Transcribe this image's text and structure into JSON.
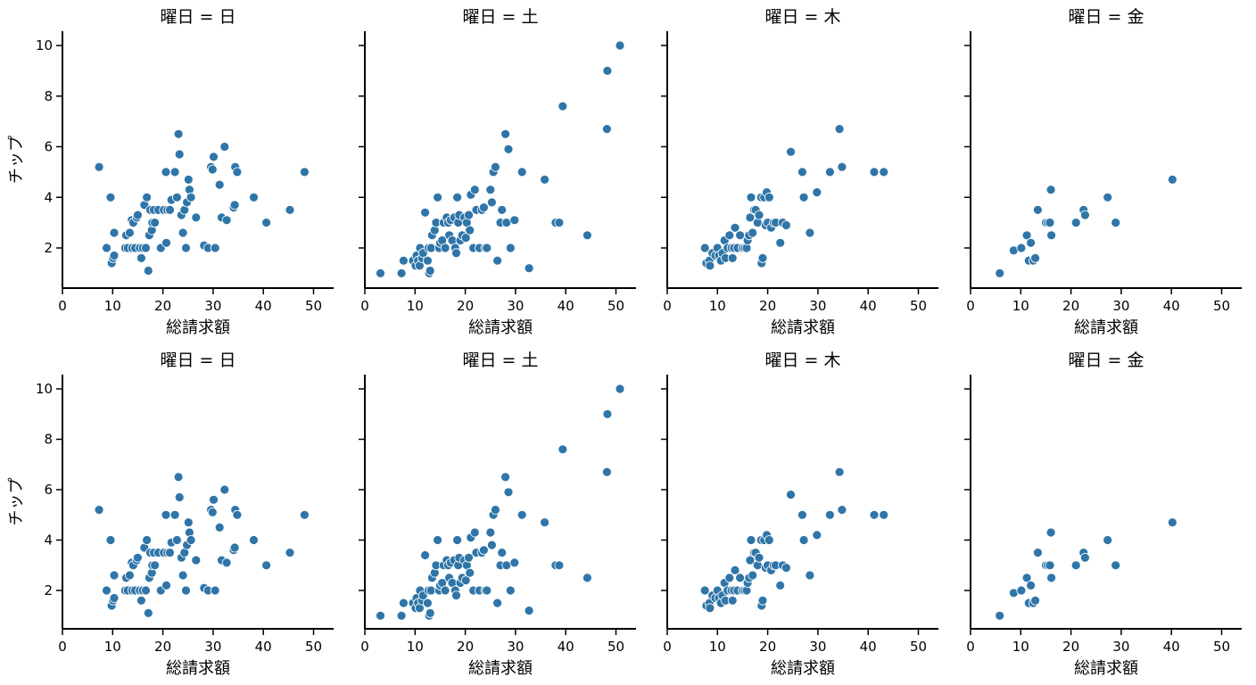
{
  "chart_data": {
    "type": "scatter",
    "title_prefix": "曜日 = ",
    "xlabel": "総請求額",
    "ylabel": "チップ",
    "xlim": [
      0,
      54
    ],
    "ylim": [
      0.5,
      10.5
    ],
    "xticks": [
      0,
      10,
      20,
      30,
      40,
      50
    ],
    "yticks": [
      2,
      4,
      6,
      8,
      10
    ],
    "marker_color": "#2f75a8",
    "rows": 2,
    "panels": [
      {
        "day": "日",
        "points": [
          [
            7.3,
            5.2
          ],
          [
            8.8,
            2.0
          ],
          [
            9.6,
            4.0
          ],
          [
            9.8,
            1.4
          ],
          [
            10.1,
            1.6
          ],
          [
            10.3,
            1.7
          ],
          [
            10.3,
            2.6
          ],
          [
            12.5,
            2.0
          ],
          [
            12.7,
            2.5
          ],
          [
            13.0,
            2.0
          ],
          [
            13.4,
            2.6
          ],
          [
            13.8,
            3.1
          ],
          [
            13.9,
            2.0
          ],
          [
            14.1,
            3.0
          ],
          [
            14.5,
            2.0
          ],
          [
            14.8,
            3.2
          ],
          [
            15.0,
            3.3
          ],
          [
            15.4,
            2.0
          ],
          [
            15.7,
            1.6
          ],
          [
            16.0,
            2.0
          ],
          [
            16.3,
            3.7
          ],
          [
            16.6,
            2.0
          ],
          [
            16.8,
            4.0
          ],
          [
            17.1,
            1.1
          ],
          [
            17.3,
            2.5
          ],
          [
            17.5,
            3.5
          ],
          [
            17.8,
            2.7
          ],
          [
            17.9,
            3.0
          ],
          [
            18.2,
            3.5
          ],
          [
            18.4,
            3.0
          ],
          [
            19.1,
            3.5
          ],
          [
            19.6,
            2.0
          ],
          [
            20.2,
            3.5
          ],
          [
            20.6,
            5.0
          ],
          [
            20.9,
            3.5
          ],
          [
            20.7,
            2.2
          ],
          [
            21.4,
            3.5
          ],
          [
            21.7,
            3.9
          ],
          [
            22.4,
            5.0
          ],
          [
            22.8,
            4.0
          ],
          [
            23.1,
            6.5
          ],
          [
            23.3,
            5.7
          ],
          [
            23.7,
            3.3
          ],
          [
            24.0,
            2.6
          ],
          [
            24.3,
            3.5
          ],
          [
            24.6,
            2.0
          ],
          [
            24.8,
            3.8
          ],
          [
            25.1,
            4.7
          ],
          [
            25.3,
            4.3
          ],
          [
            25.6,
            4.0
          ],
          [
            26.6,
            3.2
          ],
          [
            28.2,
            2.1
          ],
          [
            29.0,
            2.0
          ],
          [
            29.6,
            5.2
          ],
          [
            29.9,
            5.1
          ],
          [
            30.1,
            5.6
          ],
          [
            30.4,
            2.0
          ],
          [
            31.3,
            4.5
          ],
          [
            31.7,
            3.2
          ],
          [
            32.3,
            6.0
          ],
          [
            32.7,
            3.1
          ],
          [
            34.1,
            3.6
          ],
          [
            34.3,
            3.7
          ],
          [
            34.4,
            5.2
          ],
          [
            34.8,
            5.0
          ],
          [
            38.1,
            4.0
          ],
          [
            40.6,
            3.0
          ],
          [
            45.3,
            3.5
          ],
          [
            48.2,
            5.0
          ]
        ]
      },
      {
        "day": "土",
        "points": [
          [
            3.1,
            1.0
          ],
          [
            7.3,
            1.0
          ],
          [
            7.7,
            1.5
          ],
          [
            9.6,
            1.5
          ],
          [
            10.1,
            1.3
          ],
          [
            10.3,
            1.7
          ],
          [
            10.6,
            1.5
          ],
          [
            10.9,
            1.3
          ],
          [
            11.0,
            2.0
          ],
          [
            11.4,
            1.6
          ],
          [
            11.6,
            1.8
          ],
          [
            12.0,
            3.4
          ],
          [
            12.5,
            1.5
          ],
          [
            12.7,
            2.0
          ],
          [
            12.8,
            1.0
          ],
          [
            13.0,
            1.1
          ],
          [
            13.2,
            2.0
          ],
          [
            13.4,
            2.5
          ],
          [
            13.9,
            2.7
          ],
          [
            14.2,
            3.0
          ],
          [
            14.5,
            4.0
          ],
          [
            14.8,
            2.0
          ],
          [
            15.0,
            2.2
          ],
          [
            15.4,
            2.3
          ],
          [
            15.7,
            3.0
          ],
          [
            16.0,
            2.0
          ],
          [
            16.3,
            3.2
          ],
          [
            16.6,
            3.0
          ],
          [
            16.8,
            2.5
          ],
          [
            17.1,
            3.1
          ],
          [
            17.4,
            2.3
          ],
          [
            17.8,
            3.2
          ],
          [
            18.0,
            2.0
          ],
          [
            18.2,
            1.8
          ],
          [
            18.4,
            4.0
          ],
          [
            18.6,
            3.0
          ],
          [
            18.8,
            3.3
          ],
          [
            19.0,
            2.3
          ],
          [
            19.4,
            2.5
          ],
          [
            19.8,
            3.2
          ],
          [
            20.1,
            2.4
          ],
          [
            20.3,
            3.0
          ],
          [
            20.7,
            3.3
          ],
          [
            20.9,
            2.7
          ],
          [
            21.1,
            4.1
          ],
          [
            21.6,
            2.0
          ],
          [
            21.9,
            4.3
          ],
          [
            22.2,
            3.5
          ],
          [
            22.8,
            2.0
          ],
          [
            23.3,
            3.5
          ],
          [
            23.7,
            3.6
          ],
          [
            24.0,
            2.0
          ],
          [
            24.3,
            2.0
          ],
          [
            25.0,
            4.3
          ],
          [
            25.3,
            3.8
          ],
          [
            25.6,
            5.0
          ],
          [
            26.0,
            5.2
          ],
          [
            26.4,
            1.5
          ],
          [
            27.0,
            3.0
          ],
          [
            27.3,
            3.5
          ],
          [
            28.0,
            6.5
          ],
          [
            28.2,
            3.0
          ],
          [
            28.6,
            5.9
          ],
          [
            29.0,
            2.0
          ],
          [
            29.8,
            3.1
          ],
          [
            31.3,
            5.0
          ],
          [
            32.7,
            1.2
          ],
          [
            35.8,
            4.7
          ],
          [
            38.0,
            3.0
          ],
          [
            38.7,
            3.0
          ],
          [
            39.4,
            7.6
          ],
          [
            44.3,
            2.5
          ],
          [
            48.2,
            6.7
          ],
          [
            48.3,
            9.0
          ],
          [
            50.8,
            10.0
          ]
        ]
      },
      {
        "day": "木",
        "points": [
          [
            7.5,
            2.0
          ],
          [
            7.8,
            1.4
          ],
          [
            8.4,
            1.5
          ],
          [
            8.5,
            1.3
          ],
          [
            9.0,
            1.8
          ],
          [
            9.6,
            1.7
          ],
          [
            10.0,
            2.0
          ],
          [
            10.3,
            1.7
          ],
          [
            10.7,
            1.5
          ],
          [
            11.0,
            1.8
          ],
          [
            11.4,
            2.3
          ],
          [
            11.6,
            1.6
          ],
          [
            12.0,
            2.0
          ],
          [
            12.4,
            2.5
          ],
          [
            12.8,
            2.0
          ],
          [
            13.0,
            1.6
          ],
          [
            13.3,
            2.0
          ],
          [
            13.5,
            2.8
          ],
          [
            14.0,
            2.0
          ],
          [
            14.5,
            2.5
          ],
          [
            15.0,
            2.0
          ],
          [
            15.4,
            2.0
          ],
          [
            15.8,
            2.0
          ],
          [
            16.0,
            2.3
          ],
          [
            16.3,
            2.5
          ],
          [
            16.5,
            3.2
          ],
          [
            16.7,
            4.0
          ],
          [
            17.0,
            2.6
          ],
          [
            17.3,
            3.5
          ],
          [
            17.6,
            3.5
          ],
          [
            18.0,
            3.0
          ],
          [
            18.3,
            3.3
          ],
          [
            18.7,
            4.0
          ],
          [
            18.8,
            1.4
          ],
          [
            19.0,
            1.6
          ],
          [
            19.3,
            4.0
          ],
          [
            19.6,
            2.9
          ],
          [
            19.8,
            4.2
          ],
          [
            20.0,
            3.0
          ],
          [
            20.3,
            4.0
          ],
          [
            20.7,
            2.8
          ],
          [
            21.2,
            3.0
          ],
          [
            21.6,
            3.0
          ],
          [
            22.5,
            2.2
          ],
          [
            23.0,
            3.0
          ],
          [
            23.7,
            2.9
          ],
          [
            24.6,
            5.8
          ],
          [
            26.9,
            5.0
          ],
          [
            27.2,
            4.0
          ],
          [
            28.4,
            2.6
          ],
          [
            29.8,
            4.2
          ],
          [
            32.4,
            5.0
          ],
          [
            34.3,
            6.7
          ],
          [
            34.8,
            5.2
          ],
          [
            41.2,
            5.0
          ],
          [
            43.1,
            5.0
          ]
        ]
      },
      {
        "day": "金",
        "points": [
          [
            5.8,
            1.0
          ],
          [
            8.6,
            1.9
          ],
          [
            10.1,
            2.0
          ],
          [
            11.2,
            2.5
          ],
          [
            11.6,
            1.5
          ],
          [
            12.0,
            2.2
          ],
          [
            12.5,
            1.5
          ],
          [
            12.9,
            1.6
          ],
          [
            13.4,
            3.5
          ],
          [
            15.0,
            3.0
          ],
          [
            15.4,
            3.0
          ],
          [
            15.8,
            3.0
          ],
          [
            16.0,
            4.3
          ],
          [
            16.1,
            2.5
          ],
          [
            21.0,
            3.0
          ],
          [
            22.5,
            3.5
          ],
          [
            22.8,
            3.3
          ],
          [
            27.3,
            4.0
          ],
          [
            28.9,
            3.0
          ],
          [
            40.2,
            4.7
          ]
        ]
      }
    ]
  }
}
